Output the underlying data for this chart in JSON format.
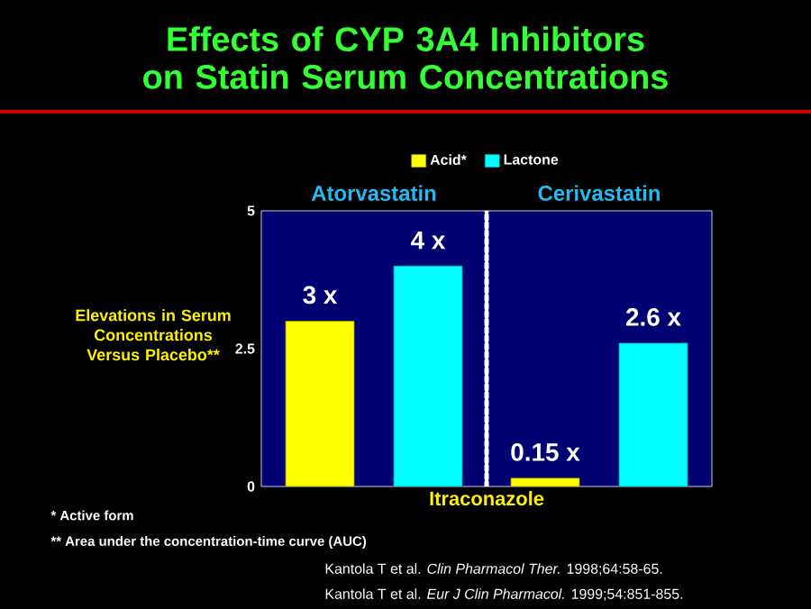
{
  "chart_data": {
    "type": "bar",
    "title": "Effects of CYP 3A4 Inhibitors on Statin Serum Concentrations",
    "xlabel": "Itraconazole",
    "ylabel": "Elevations in Serum Concentrations Versus Placebo**",
    "categories": [
      "Atorvastatin",
      "Cerivastatin"
    ],
    "series": [
      {
        "name": "Acid*",
        "color": "#ffff00",
        "values": [
          3,
          0.15
        ],
        "value_labels": [
          "3 x",
          "0.15 x"
        ]
      },
      {
        "name": "Lactone",
        "color": "#00ffff",
        "values": [
          4,
          2.6
        ],
        "value_labels": [
          "4 x",
          "2.6 x"
        ]
      }
    ],
    "ylim": [
      0,
      5
    ],
    "yticks": [
      0,
      2.5,
      5
    ],
    "legend": "top",
    "annotations": [
      "* Active form",
      "** Area under the concentration-time curve (AUC)",
      "Kantola T et al. *Clin Pharmacol Ther.* 1998;64:58-65.",
      "Kantola T et al. *Eur J Clin Pharmacol.* 1999;54:851-855."
    ]
  }
}
